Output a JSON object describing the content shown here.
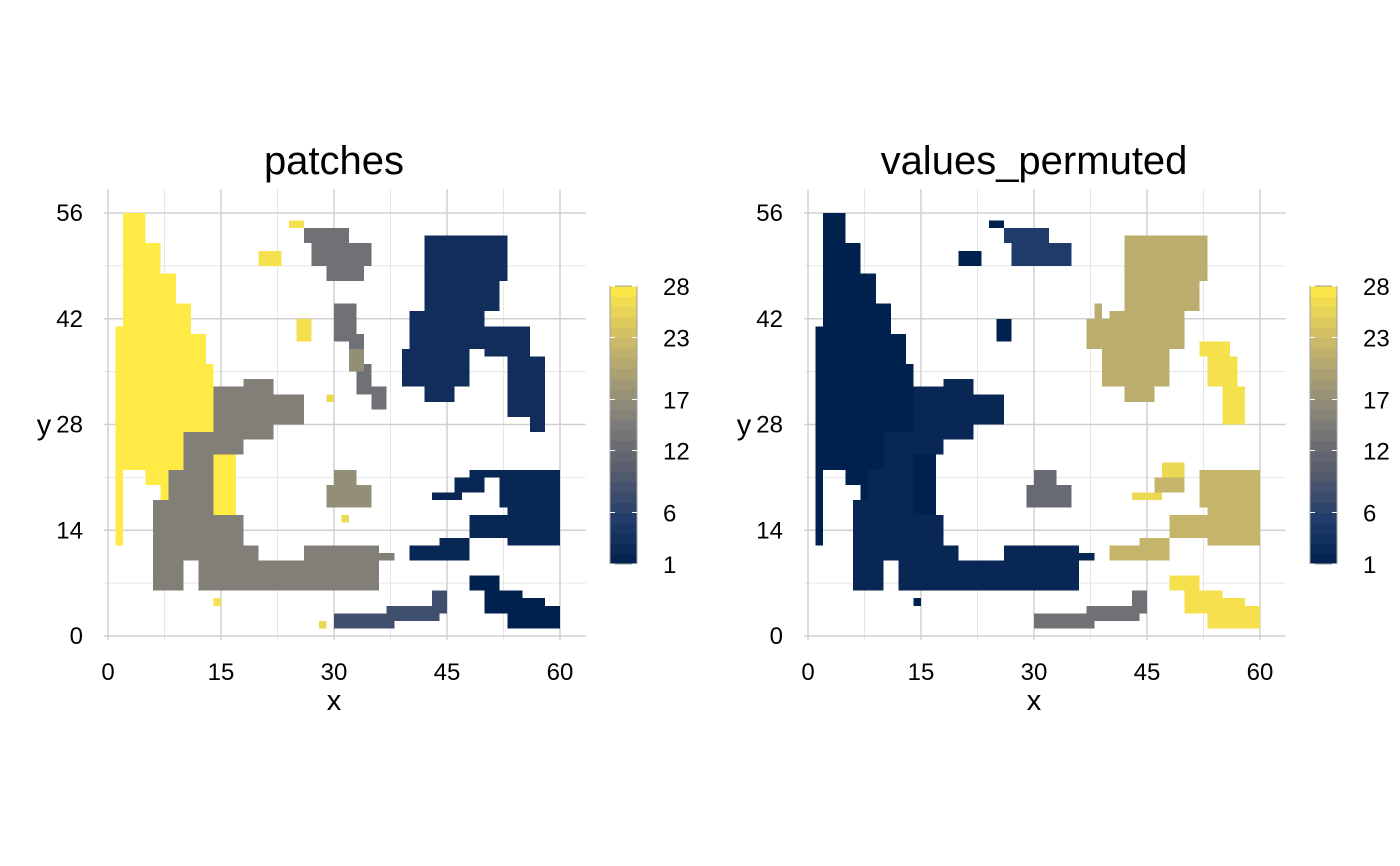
{
  "figure": {
    "panels": [
      {
        "title": "patches",
        "xlabel": "x",
        "ylabel": "y",
        "legend": {
          "ticks": [
            "1",
            "6",
            "12",
            "17",
            "23",
            "28"
          ]
        }
      },
      {
        "title": "values_permuted",
        "xlabel": "x",
        "ylabel": "y",
        "legend": {
          "ticks": [
            "1",
            "6",
            "12",
            "17",
            "23",
            "28"
          ]
        }
      }
    ]
  },
  "colors": {
    "scale": [
      "#00204D",
      "#233E6C",
      "#575C6D",
      "#7C7B78",
      "#A69D75",
      "#D3C164",
      "#FFEA46"
    ],
    "grid": "#d0d0d0"
  },
  "chart_data": [
    {
      "type": "heatmap",
      "title": "patches",
      "xlabel": "x",
      "ylabel": "y",
      "xlim": [
        0,
        60
      ],
      "ylim": [
        0,
        56
      ],
      "xticks": [
        0,
        15,
        30,
        45,
        60
      ],
      "yticks": [
        0,
        14,
        28,
        42,
        56
      ],
      "color_range": [
        1,
        28
      ],
      "colorbar_ticks": [
        1,
        6,
        12,
        17,
        23,
        28
      ],
      "grid": true,
      "legend_position": "right",
      "colormap": "cividis",
      "patches": [
        {
          "value": 28,
          "cells": [
            [
              1,
              12,
              2,
              41
            ],
            [
              2,
              22,
              5,
              56
            ],
            [
              5,
              20,
              7,
              52
            ],
            [
              7,
              18,
              9,
              48
            ],
            [
              9,
              16,
              11,
              44
            ],
            [
              11,
              14,
              13,
              40
            ],
            [
              13,
              12,
              14,
              36
            ],
            [
              14,
              10,
              15,
              32
            ],
            [
              15,
              10,
              16,
              28
            ],
            [
              16,
              8,
              17,
              24
            ]
          ]
        },
        {
          "value": 27,
          "cells": [
            [
              20,
              49,
              23,
              51
            ],
            [
              24,
              54,
              26,
              55
            ],
            [
              25,
              39,
              27,
              42
            ],
            [
              14,
              4,
              15,
              5
            ]
          ]
        },
        {
          "value": 26,
          "cells": [
            [
              31,
              15,
              32,
              16
            ],
            [
              28,
              1,
              29,
              2
            ],
            [
              29,
              31,
              30,
              32
            ]
          ]
        },
        {
          "value": 15,
          "cells": [
            [
              10,
              22,
              14,
              27
            ],
            [
              14,
              24,
              18,
              33
            ],
            [
              18,
              26,
              22,
              34
            ],
            [
              22,
              28,
              26,
              32
            ],
            [
              6,
              6,
              10,
              18
            ],
            [
              8,
              10,
              14,
              22
            ],
            [
              12,
              6,
              20,
              12
            ],
            [
              14,
              12,
              18,
              16
            ],
            [
              18,
              6,
              36,
              10
            ],
            [
              26,
              8,
              36,
              12
            ],
            [
              36,
              10,
              38,
              11
            ]
          ]
        },
        {
          "value": 13,
          "cells": [
            [
              26,
              52,
              32,
              54
            ],
            [
              27,
              49,
              35,
              52
            ],
            [
              29,
              47,
              34,
              49
            ],
            [
              30,
              39,
              33,
              44
            ],
            [
              32,
              36,
              34,
              40
            ],
            [
              33,
              32,
              35,
              36
            ],
            [
              35,
              30,
              37,
              33
            ]
          ]
        },
        {
          "value": 17,
          "cells": [
            [
              32,
              35,
              34,
              38
            ],
            [
              29,
              17,
              35,
              20
            ],
            [
              30,
              20,
              33,
              22
            ]
          ]
        },
        {
          "value": 3,
          "cells": [
            [
              42,
              47,
              53,
              53
            ],
            [
              42,
              43,
              52,
              47
            ],
            [
              40,
              38,
              50,
              43
            ],
            [
              39,
              33,
              48,
              38
            ],
            [
              42,
              31,
              46,
              33
            ],
            [
              47,
              43,
              52,
              44
            ],
            [
              50,
              37,
              56,
              41
            ],
            [
              53,
              29,
              58,
              37
            ],
            [
              56,
              27,
              58,
              29
            ]
          ]
        },
        {
          "value": 2,
          "cells": [
            [
              43,
              18,
              47,
              19
            ],
            [
              46,
              19,
              50,
              21
            ],
            [
              48,
              21,
              52,
              22
            ],
            [
              52,
              17,
              60,
              22
            ],
            [
              53,
              12,
              60,
              17
            ],
            [
              48,
              13,
              53,
              16
            ],
            [
              40,
              10,
              48,
              12
            ],
            [
              44,
              12,
              48,
              13
            ]
          ]
        },
        {
          "value": 8,
          "cells": [
            [
              30,
              1,
              38,
              3
            ],
            [
              37,
              2,
              44,
              4
            ],
            [
              43,
              3,
              45,
              6
            ]
          ]
        },
        {
          "value": 1,
          "cells": [
            [
              48,
              6,
              52,
              8
            ],
            [
              50,
              3,
              55,
              6
            ],
            [
              53,
              1,
              60,
              4
            ],
            [
              54,
              4,
              58,
              5
            ]
          ]
        }
      ]
    },
    {
      "type": "heatmap",
      "title": "values_permuted",
      "xlabel": "x",
      "ylabel": "y",
      "xlim": [
        0,
        60
      ],
      "ylim": [
        0,
        56
      ],
      "xticks": [
        0,
        15,
        30,
        45,
        60
      ],
      "yticks": [
        0,
        14,
        28,
        42,
        56
      ],
      "color_range": [
        1,
        28
      ],
      "colorbar_ticks": [
        1,
        6,
        12,
        17,
        23,
        28
      ],
      "grid": true,
      "legend_position": "right",
      "colormap": "cividis",
      "patches": [
        {
          "value": 1,
          "cells": [
            [
              1,
              12,
              2,
              41
            ],
            [
              2,
              22,
              5,
              56
            ],
            [
              5,
              20,
              7,
              52
            ],
            [
              7,
              18,
              9,
              48
            ],
            [
              9,
              16,
              11,
              44
            ],
            [
              11,
              14,
              13,
              40
            ],
            [
              13,
              12,
              14,
              36
            ],
            [
              14,
              10,
              15,
              32
            ],
            [
              15,
              10,
              16,
              28
            ],
            [
              16,
              8,
              17,
              24
            ]
          ]
        },
        {
          "value": 1,
          "cells": [
            [
              20,
              49,
              23,
              51
            ],
            [
              24,
              54,
              26,
              55
            ],
            [
              25,
              39,
              27,
              42
            ],
            [
              14,
              4,
              15,
              5
            ]
          ]
        },
        {
          "value": 2,
          "cells": [
            [
              10,
              22,
              14,
              27
            ],
            [
              14,
              24,
              18,
              33
            ],
            [
              18,
              26,
              22,
              34
            ],
            [
              22,
              28,
              26,
              32
            ],
            [
              6,
              6,
              10,
              18
            ],
            [
              8,
              10,
              14,
              22
            ],
            [
              12,
              6,
              20,
              12
            ],
            [
              14,
              12,
              18,
              16
            ],
            [
              18,
              6,
              36,
              10
            ],
            [
              26,
              8,
              36,
              12
            ],
            [
              36,
              10,
              38,
              11
            ]
          ]
        },
        {
          "value": 5,
          "cells": [
            [
              26,
              52,
              32,
              54
            ],
            [
              27,
              49,
              35,
              52
            ]
          ]
        },
        {
          "value": 12,
          "cells": [
            [
              29,
              17,
              35,
              20
            ],
            [
              30,
              20,
              33,
              22
            ]
          ]
        },
        {
          "value": 21,
          "cells": [
            [
              42,
              47,
              53,
              53
            ],
            [
              42,
              43,
              52,
              47
            ],
            [
              40,
              38,
              50,
              43
            ],
            [
              39,
              33,
              48,
              38
            ],
            [
              42,
              31,
              46,
              33
            ],
            [
              47,
              43,
              52,
              44
            ],
            [
              37,
              38,
              40,
              42
            ],
            [
              38,
              42,
              39,
              44
            ]
          ]
        },
        {
          "value": 27,
          "cells": [
            [
              52,
              37,
              56,
              39
            ],
            [
              53,
              33,
              57,
              37
            ],
            [
              55,
              28,
              58,
              33
            ]
          ]
        },
        {
          "value": 22,
          "cells": [
            [
              52,
              17,
              60,
              22
            ],
            [
              53,
              12,
              60,
              17
            ],
            [
              48,
              13,
              53,
              16
            ],
            [
              40,
              10,
              48,
              12
            ],
            [
              44,
              12,
              48,
              13
            ],
            [
              46,
              19,
              50,
              21
            ]
          ]
        },
        {
          "value": 26,
          "cells": [
            [
              43,
              18,
              47,
              19
            ],
            [
              47,
              21,
              50,
              23
            ]
          ]
        },
        {
          "value": 13,
          "cells": [
            [
              30,
              1,
              38,
              3
            ],
            [
              37,
              2,
              44,
              4
            ],
            [
              43,
              3,
              45,
              6
            ]
          ]
        },
        {
          "value": 27,
          "cells": [
            [
              48,
              6,
              52,
              8
            ],
            [
              50,
              3,
              55,
              6
            ],
            [
              53,
              1,
              60,
              4
            ],
            [
              54,
              4,
              58,
              5
            ]
          ]
        }
      ]
    }
  ]
}
